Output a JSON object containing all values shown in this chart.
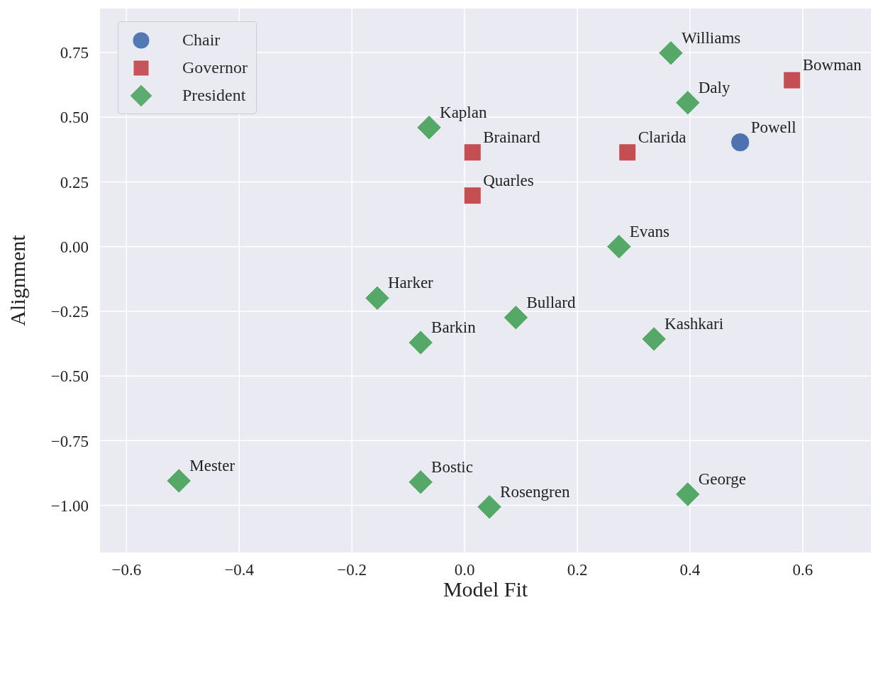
{
  "chart_data": {
    "type": "scatter",
    "xlabel": "Model Fit",
    "ylabel": "Alignment",
    "legend": "top left",
    "grid": true,
    "xlim": [
      -0.647,
      0.721
    ],
    "ylim": [
      -1.182,
      0.92
    ],
    "xticks": [
      {
        "value": -0.6,
        "label": "−0.6"
      },
      {
        "value": -0.4,
        "label": "−0.4"
      },
      {
        "value": -0.2,
        "label": "−0.2"
      },
      {
        "value": 0,
        "label": "0.0"
      },
      {
        "value": 0.2,
        "label": "0.2"
      },
      {
        "value": 0.4,
        "label": "0.4"
      },
      {
        "value": 0.6,
        "label": "0.6"
      }
    ],
    "yticks": [
      {
        "value": -1,
        "label": "−1.00"
      },
      {
        "value": -0.75,
        "label": "−0.75"
      },
      {
        "value": -0.5,
        "label": "−0.50"
      },
      {
        "value": -0.25,
        "label": "−0.25"
      },
      {
        "value": 0,
        "label": "0.00"
      },
      {
        "value": 0.25,
        "label": "0.25"
      },
      {
        "value": 0.5,
        "label": "0.50"
      },
      {
        "value": 0.75,
        "label": "0.75"
      }
    ],
    "series": [
      {
        "name": "Chair",
        "color": "#4c72b0",
        "marker": "circle",
        "x": [
          0.489
        ],
        "values": [
          0.403
        ]
      },
      {
        "name": "Governor",
        "color": "#c44e52",
        "marker": "square",
        "x": [
          0.581,
          0.289,
          0.014,
          0.014
        ],
        "values": [
          0.643,
          0.364,
          0.364,
          0.197
        ]
      },
      {
        "name": "President",
        "color": "#55a868",
        "marker": "diamond",
        "x": [
          0.366,
          0.396,
          -0.063,
          0.274,
          -0.155,
          0.091,
          -0.078,
          0.336,
          -0.507,
          -0.078,
          0.044,
          0.396
        ],
        "values": [
          0.748,
          0.556,
          0.46,
          0.0,
          -0.199,
          -0.274,
          -0.371,
          -0.357,
          -0.905,
          -0.91,
          -1.006,
          -0.957
        ]
      }
    ],
    "annotations": [
      {
        "text": "Powell",
        "x": 0.489,
        "y": 0.403
      },
      {
        "text": "Bowman",
        "x": 0.581,
        "y": 0.643
      },
      {
        "text": "Clarida",
        "x": 0.289,
        "y": 0.364
      },
      {
        "text": "Brainard",
        "x": 0.014,
        "y": 0.364
      },
      {
        "text": "Quarles",
        "x": 0.014,
        "y": 0.197
      },
      {
        "text": "Williams",
        "x": 0.366,
        "y": 0.748
      },
      {
        "text": "Daly",
        "x": 0.396,
        "y": 0.556
      },
      {
        "text": "Kaplan",
        "x": -0.063,
        "y": 0.46
      },
      {
        "text": "Evans",
        "x": 0.274,
        "y": 0.0
      },
      {
        "text": "Harker",
        "x": -0.155,
        "y": -0.199
      },
      {
        "text": "Bullard",
        "x": 0.091,
        "y": -0.274
      },
      {
        "text": "Barkin",
        "x": -0.078,
        "y": -0.371
      },
      {
        "text": "Kashkari",
        "x": 0.336,
        "y": -0.357
      },
      {
        "text": "Mester",
        "x": -0.507,
        "y": -0.905
      },
      {
        "text": "Bostic",
        "x": -0.078,
        "y": -0.91
      },
      {
        "text": "Rosengren",
        "x": 0.044,
        "y": -1.006
      },
      {
        "text": "George",
        "x": 0.396,
        "y": -0.957
      }
    ]
  }
}
